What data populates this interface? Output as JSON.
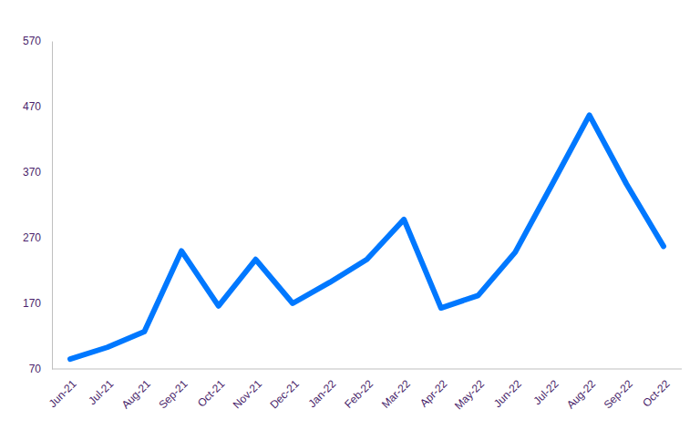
{
  "chart_data": {
    "type": "line",
    "categories": [
      "Jun-21",
      "Jul-21",
      "Aug-21",
      "Sep-21",
      "Oct-21",
      "Nov-21",
      "Dec-21",
      "Jan-22",
      "Feb-22",
      "Mar-22",
      "Apr-22",
      "May-22",
      "Jun-22",
      "Jul-22",
      "Aug-22",
      "Sep-22",
      "Oct-22"
    ],
    "values": [
      85,
      103,
      127,
      250,
      166,
      237,
      170,
      202,
      237,
      298,
      163,
      182,
      248,
      352,
      457,
      352,
      257
    ],
    "color": "#0078ff",
    "ylim": [
      70,
      570
    ],
    "yticks": [
      70,
      170,
      270,
      370,
      470,
      570
    ],
    "grid": false
  }
}
